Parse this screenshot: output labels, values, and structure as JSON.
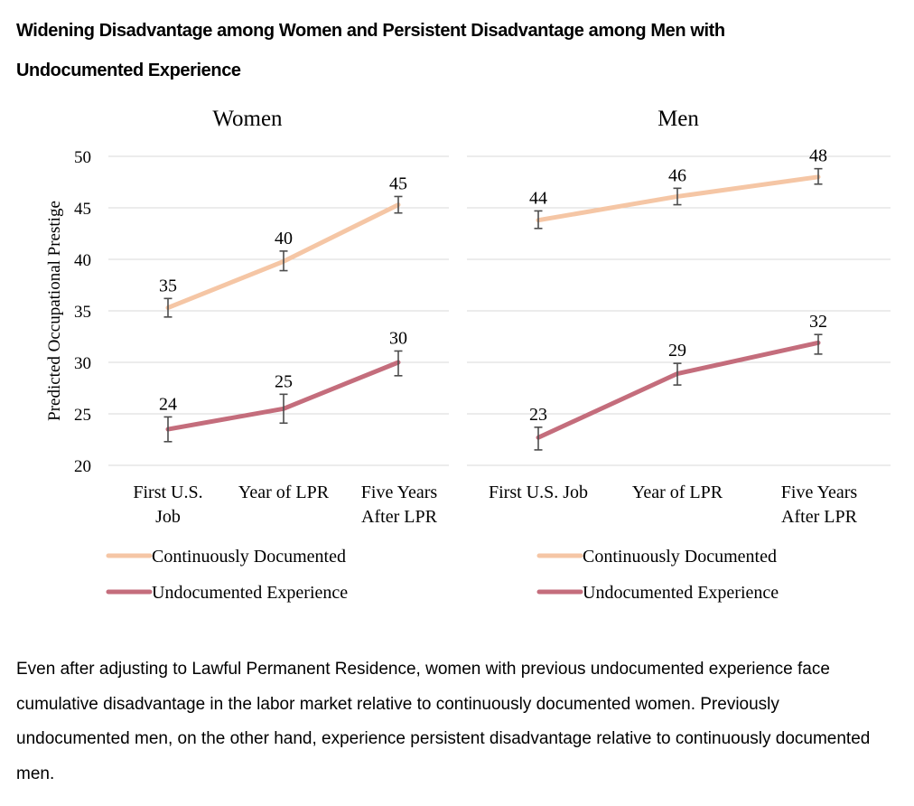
{
  "title": {
    "line1": "Widening Disadvantage among Women and Persistent Disadvantage among Men with",
    "line2": "Undocumented Experience"
  },
  "caption": "Even after adjusting to Lawful Permanent Residence, women with previous undocumented experience face cumulative disadvantage in the labor market relative to continuously documented women. Previously undocumented men, on the other hand, experience persistent disadvantage relative to continuously documented men.",
  "chart_data": {
    "type": "line",
    "ylabel": "Predicted Occupational Prestige",
    "ylim": [
      20,
      50
    ],
    "yticks": [
      20,
      25,
      30,
      35,
      40,
      45,
      50
    ],
    "grid": true,
    "legend_placement": "bottom",
    "colors": {
      "documented": "#f5c6a5",
      "undocumented": "#c46d7c",
      "errorbar": "#4d4d4d",
      "grid": "#d9d9d9"
    },
    "panels": [
      {
        "title": "Women",
        "categories": [
          [
            "First U.S.",
            "Job"
          ],
          [
            "Year of LPR"
          ],
          [
            "Five Years",
            "After LPR"
          ]
        ],
        "series": [
          {
            "name": "Continuously Documented",
            "key": "documented",
            "values": [
              35.3,
              39.8,
              45.3
            ],
            "labels": [
              "35",
              "40",
              "45"
            ],
            "err_low": [
              34.4,
              38.9,
              44.5
            ],
            "err_high": [
              36.2,
              40.8,
              46.1
            ]
          },
          {
            "name": "Undocumented Experience",
            "key": "undocumented",
            "values": [
              23.5,
              25.5,
              30.0
            ],
            "labels": [
              "24",
              "25",
              "30"
            ],
            "err_low": [
              22.3,
              24.1,
              28.7
            ],
            "err_high": [
              24.7,
              26.9,
              31.1
            ]
          }
        ]
      },
      {
        "title": "Men",
        "categories": [
          [
            "First U.S. Job"
          ],
          [
            "Year of LPR"
          ],
          [
            "Five Years",
            "After LPR"
          ]
        ],
        "series": [
          {
            "name": "Continuously Documented",
            "key": "documented",
            "values": [
              43.8,
              46.1,
              48.0
            ],
            "labels": [
              "44",
              "46",
              "48"
            ],
            "err_low": [
              43.0,
              45.3,
              47.3
            ],
            "err_high": [
              44.7,
              46.9,
              48.8
            ]
          },
          {
            "name": "Undocumented Experience",
            "key": "undocumented",
            "values": [
              22.7,
              28.9,
              31.9
            ],
            "labels": [
              "23",
              "29",
              "32"
            ],
            "err_low": [
              21.5,
              27.8,
              30.8
            ],
            "err_high": [
              23.7,
              29.9,
              32.7
            ]
          }
        ]
      }
    ]
  }
}
